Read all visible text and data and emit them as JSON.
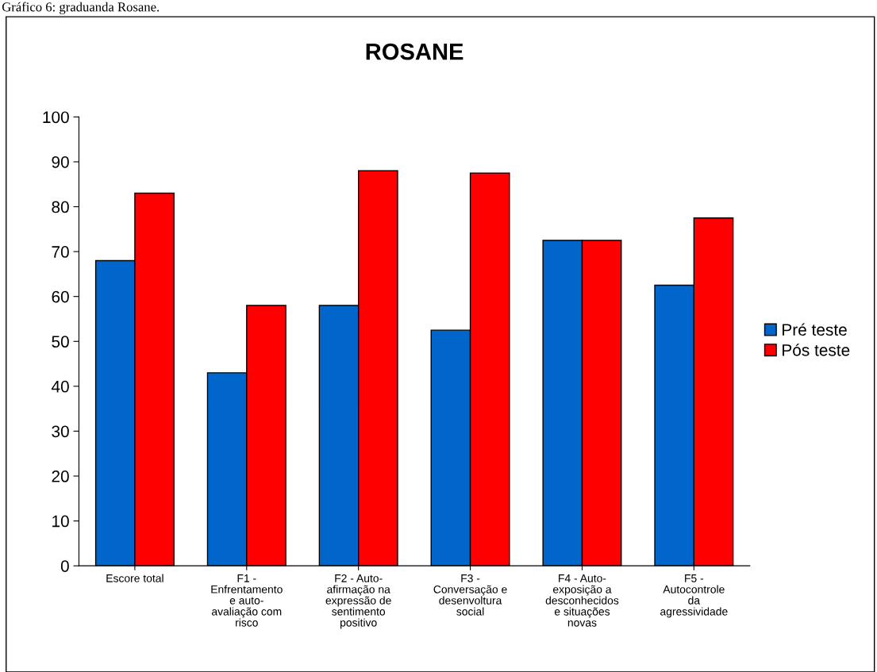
{
  "chart_data": {
    "type": "bar",
    "title": "ROSANE",
    "annotations": [
      "Gráfico 6: graduanda Rosane."
    ],
    "categories": [
      "Escore total",
      "F1 -\nEnfrentamento\ne auto-\navaliação com\nrisco",
      "F2 - Auto-\nafirmação na\nexpressão de\nsentimento\npositivo",
      "F3 -\nConversação e\ndesenvoltura\nsocial",
      "F4 - Auto-\nexposição a\ndesconhecidos\ne situações\nnovas",
      "F5 -\nAutocontrole\nda\nagressividade"
    ],
    "series": [
      {
        "name": "Pré teste",
        "color": "#0066cc",
        "values": [
          68,
          43,
          58,
          52.5,
          72.5,
          62.5
        ]
      },
      {
        "name": "Pós teste",
        "color": "#ff0000",
        "values": [
          83,
          58,
          88,
          87.5,
          72.5,
          77.5
        ]
      }
    ],
    "ylim": [
      0,
      100
    ],
    "yticks": [
      0,
      10,
      20,
      30,
      40,
      50,
      60,
      70,
      80,
      90,
      100
    ],
    "grid": false,
    "legend": "right"
  }
}
